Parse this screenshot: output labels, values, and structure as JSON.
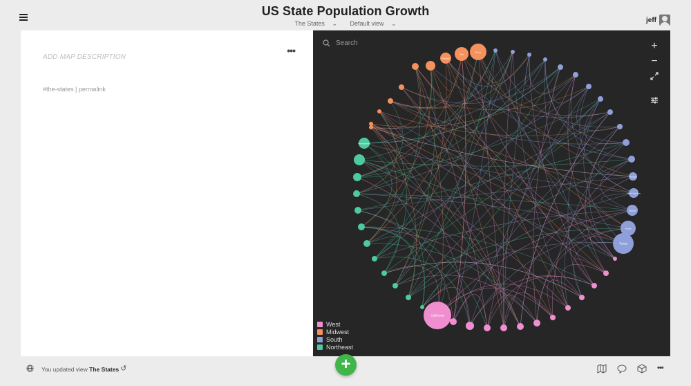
{
  "header": {
    "title": "US State Population Growth",
    "map_name": "The States",
    "view_name": "Default view",
    "user_name": "jeff"
  },
  "left_panel": {
    "description_placeholder": "ADD MAP DESCRIPTION",
    "more_menu": "•••",
    "tag": "#the-states",
    "separator": "|",
    "permalink": "permalink"
  },
  "map": {
    "search_placeholder": "Search",
    "legend": [
      {
        "label": "West",
        "color": "#f08fcf"
      },
      {
        "label": "Midwest",
        "color": "#f5915c"
      },
      {
        "label": "South",
        "color": "#8f9fd9"
      },
      {
        "label": "Northeast",
        "color": "#4ec9a0"
      }
    ],
    "node_labels": {
      "california": "California",
      "texas": "Texas",
      "florida": "Florida",
      "new_york": "New York",
      "illinois": "Illinois",
      "ohio": "Ohio",
      "georgia": "Georgia",
      "north_carolina": "North Carolina",
      "virginia": "Virginia",
      "pennsylvania": "Pennsylvania",
      "michigan": "Michigan"
    },
    "colors": {
      "west": "#f08fcf",
      "midwest": "#f5915c",
      "south": "#8f9fd9",
      "northeast": "#4ec9a0"
    }
  },
  "footer": {
    "activity_prefix": "You updated view",
    "activity_view": "The States",
    "more_menu": "•••"
  }
}
